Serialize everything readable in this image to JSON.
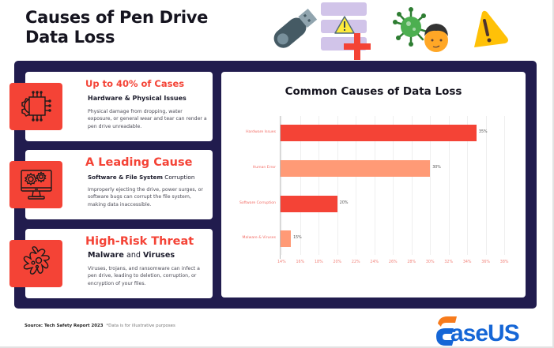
{
  "header": {
    "title_line1": "Causes of Pen Drive",
    "title_line2": "Data Loss",
    "icons": [
      "usb-drive-icon",
      "database-warning-icon",
      "virus-person-icon",
      "warning-triangle-icon"
    ]
  },
  "cards": [
    {
      "icon": "chip-gear-icon",
      "headline": "Up to 40% of Cases",
      "subtitle_bold": "Hardware & Physical Issues",
      "subtitle_light": "",
      "description": "Physical damage from dropping, water exposure, or general wear and tear can render a pen drive unreadable."
    },
    {
      "icon": "monitor-gears-icon",
      "headline": "A Leading Cause",
      "subtitle_bold": "Software & File System",
      "subtitle_light": " Corruption",
      "description": "Improperly ejecting the drive, power surges, or software bugs can corrupt the file system, making data inaccessible."
    },
    {
      "icon": "virus-icon",
      "headline": "High-Risk Threat",
      "subtitle_bold_1": "Malware",
      "subtitle_light_mid": " and ",
      "subtitle_bold_2": "Viruses",
      "description": "Viruses, trojans, and ransomware can infect a pen drive, leading to deletion, corruption, or encryption of your files."
    }
  ],
  "chart_data": {
    "type": "bar",
    "orientation": "horizontal",
    "title": "Common Causes of Data Loss",
    "categories": [
      "Hardware Issues",
      "Human Error",
      "Software Corruption",
      "Malware & Viruses"
    ],
    "values": [
      35,
      30,
      20,
      15
    ],
    "value_labels": [
      "35%",
      "30%",
      "20%",
      "15%"
    ],
    "bar_colors": [
      "#f44336",
      "#ff9a76",
      "#f44336",
      "#ff9a76"
    ],
    "xlabel": "",
    "ylabel": "",
    "xlim": [
      13.8,
      38.5
    ],
    "x_ticks": [
      "14%",
      "16%",
      "18%",
      "20%",
      "22%",
      "24%",
      "26%",
      "28%",
      "30%",
      "32%",
      "34%",
      "36%",
      "38%"
    ],
    "grid": true,
    "legend": "none"
  },
  "footer": {
    "source": "Source: Tech Safety Report 2023",
    "note": "*Data is for illustrative purposes"
  },
  "brand": {
    "logo_text": "aseUS",
    "logo_name": "EaseUS",
    "colors": {
      "accent": "#f44336",
      "panel": "#211c4e",
      "logo_blue": "#1566d6",
      "logo_orange": "#f77b1c"
    }
  }
}
